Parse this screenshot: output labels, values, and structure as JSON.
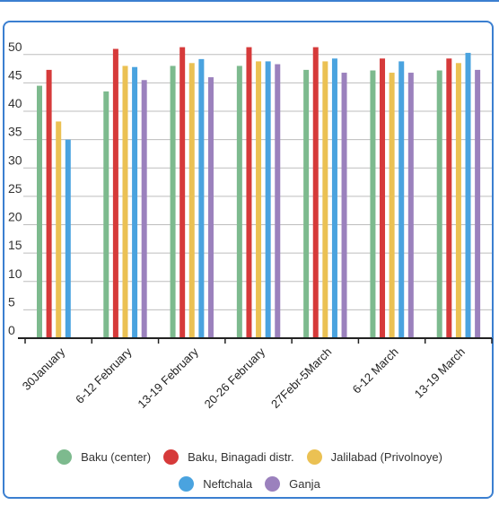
{
  "chart_data": {
    "type": "bar",
    "categories": [
      "30January",
      "6-12 February",
      "13-19 February",
      "20-26 February",
      "27Febr-5March",
      "6-12 March",
      "13-19 March"
    ],
    "series": [
      {
        "name": "Baku (center)",
        "color": "#7dba8e",
        "values": [
          44.5,
          43.5,
          48,
          48,
          47.3,
          47.2,
          47.2
        ]
      },
      {
        "name": "Baku, Binagadi distr.",
        "color": "#d63a3a",
        "values": [
          47.3,
          51,
          51.3,
          51.3,
          51.3,
          49.3,
          49.3
        ]
      },
      {
        "name": "Jalilabad (Privolnoye)",
        "color": "#ebc153",
        "values": [
          38.2,
          48,
          48.5,
          48.8,
          48.8,
          46.8,
          48.5
        ]
      },
      {
        "name": "Neftchala",
        "color": "#4aa3df",
        "values": [
          35,
          47.8,
          49.2,
          48.8,
          49.3,
          48.8,
          50.3
        ]
      },
      {
        "name": "Ganja",
        "color": "#9b81bd",
        "values": [
          null,
          45.5,
          46,
          48.3,
          46.8,
          46.8,
          47.3
        ]
      }
    ],
    "yticks": [
      0,
      5,
      10,
      15,
      20,
      25,
      30,
      35,
      40,
      45,
      50
    ],
    "ylim": [
      0,
      52.5
    ],
    "grid": true,
    "legend_position": "bottom",
    "title": "",
    "xlabel": "",
    "ylabel": ""
  }
}
